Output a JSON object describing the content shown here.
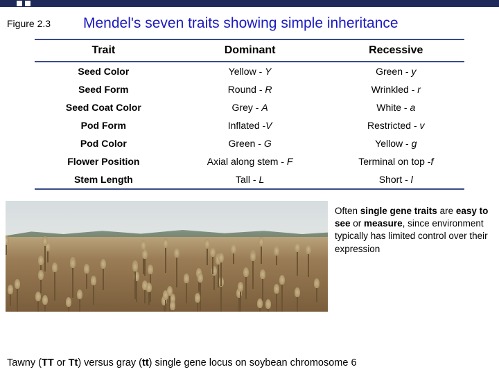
{
  "header": {
    "figure_label": "Figure 2.3",
    "title": "Mendel's seven traits showing simple inheritance"
  },
  "table": {
    "columns": [
      "Trait",
      "Dominant",
      "Recessive"
    ],
    "rows": [
      {
        "trait": "Seed Color",
        "dominant": "Yellow - ",
        "dominant_sym": "Y",
        "recessive": "Green - ",
        "recessive_sym": "y"
      },
      {
        "trait": "Seed Form",
        "dominant": "Round - ",
        "dominant_sym": "R",
        "recessive": "Wrinkled - ",
        "recessive_sym": "r"
      },
      {
        "trait": "Seed Coat Color",
        "dominant": "Grey - ",
        "dominant_sym": "A",
        "recessive": "White - ",
        "recessive_sym": "a"
      },
      {
        "trait": "Pod Form",
        "dominant": "Inflated -",
        "dominant_sym": "V",
        "recessive": "Restricted - ",
        "recessive_sym": "v"
      },
      {
        "trait": "Pod Color",
        "dominant": "Green - ",
        "dominant_sym": "G",
        "recessive": "Yellow - ",
        "recessive_sym": "g"
      },
      {
        "trait": "Flower Position",
        "dominant": "Axial along stem - ",
        "dominant_sym": "F",
        "recessive": "Terminal on top -",
        "recessive_sym": "f"
      },
      {
        "trait": "Stem Length",
        "dominant": "Tall - ",
        "dominant_sym": "L",
        "recessive": "Short - ",
        "recessive_sym": "l"
      }
    ]
  },
  "caption": {
    "line1a": "Often ",
    "line1b": "single gene traits",
    "line2a": " are ",
    "line2b": "easy to see",
    "line2c": " or ",
    "line3a": "measure",
    "line3b": ", since environment typically has limited control over their expression"
  },
  "footer": {
    "t1": "Tawny (",
    "t2": "TT",
    "t3": " or ",
    "t4": "Tt",
    "t5": ") versus gray (",
    "t6": "tt",
    "t7": ") single gene locus on soybean chromosome 6"
  },
  "colors": {
    "title": "#1a1abf",
    "rule": "#3a4a8a",
    "topbar": "#1f2a5a"
  }
}
